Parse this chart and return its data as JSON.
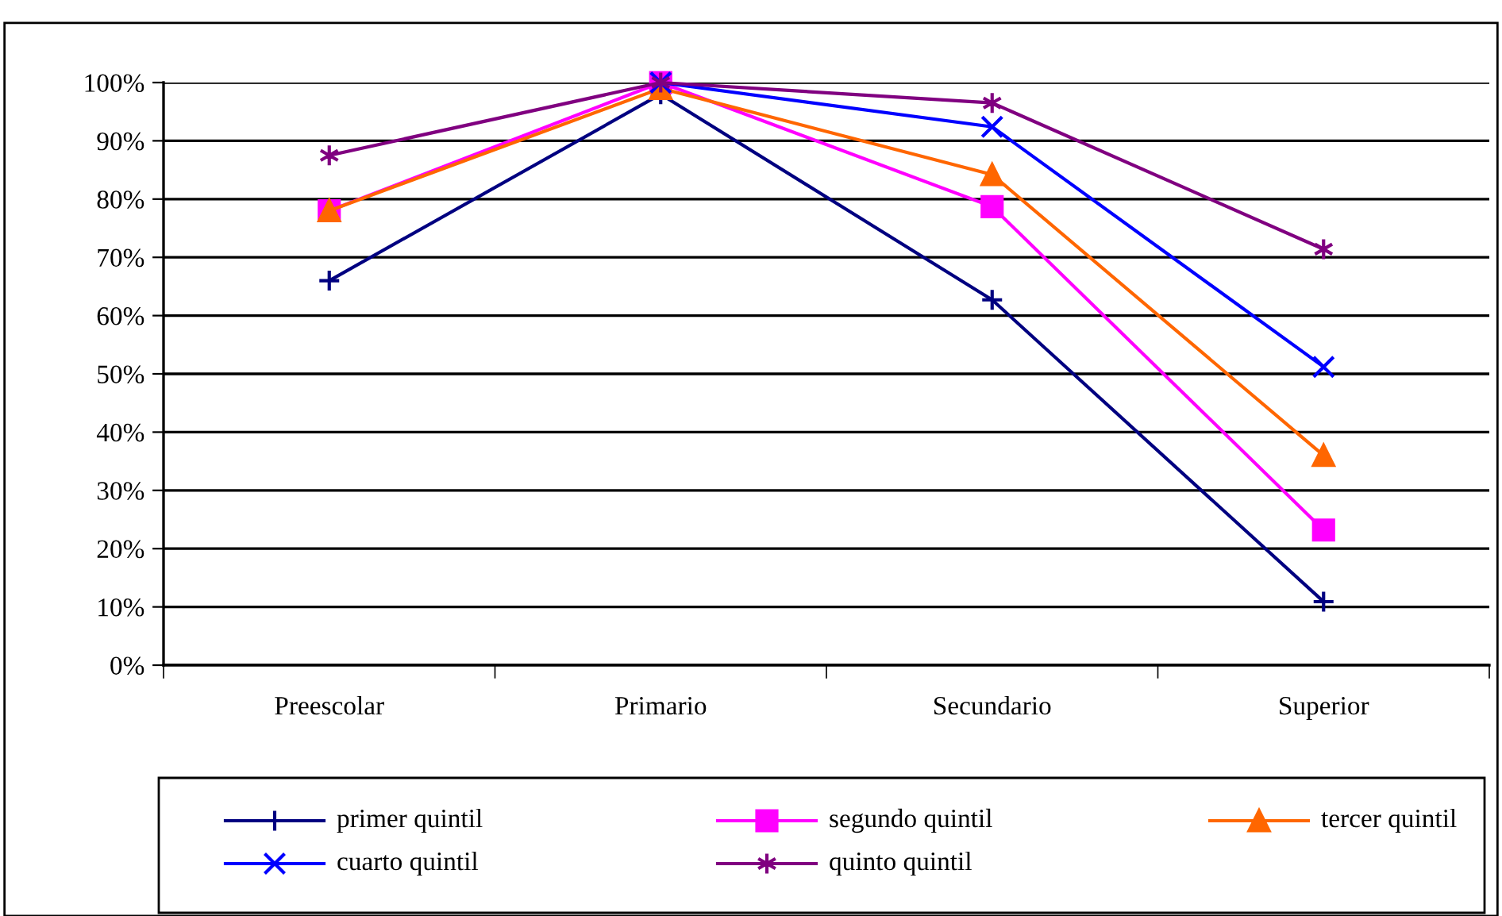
{
  "chart_data": {
    "type": "line",
    "categories": [
      "Preescolar",
      "Primario",
      "Secundario",
      "Superior"
    ],
    "series": [
      {
        "name": "primer quintil",
        "color": "#000080",
        "marker": "cross",
        "values": [
          66,
          98,
          62.7,
          10.9
        ]
      },
      {
        "name": "segundo quintil",
        "color": "#ff00ff",
        "marker": "square",
        "values": [
          78,
          100,
          78.7,
          23.2
        ]
      },
      {
        "name": "tercer quintil",
        "color": "#ff6600",
        "marker": "triangle",
        "values": [
          78,
          99,
          84.2,
          36
        ]
      },
      {
        "name": "cuarto quintil",
        "color": "#0000ff",
        "marker": "cross",
        "values": [
          null,
          100,
          92.4,
          51.2
        ]
      },
      {
        "name": "quinto quintil",
        "color": "#800080",
        "marker": "cross",
        "values": [
          87.5,
          100,
          96.5,
          71.4
        ]
      }
    ],
    "ylim": [
      0,
      100
    ],
    "yticks": [
      {
        "value": 0,
        "label": "0%"
      },
      {
        "value": 10,
        "label": "10%"
      },
      {
        "value": 20,
        "label": "20%"
      },
      {
        "value": 30,
        "label": "30%"
      },
      {
        "value": 40,
        "label": "40%"
      },
      {
        "value": 50,
        "label": "50%"
      },
      {
        "value": 60,
        "label": "60%"
      },
      {
        "value": 70,
        "label": "70%"
      },
      {
        "value": 80,
        "label": "80%"
      },
      {
        "value": 90,
        "label": "90%"
      },
      {
        "value": 100,
        "label": "100%"
      }
    ],
    "grid": "y",
    "legend": "bottom",
    "line_style": "solid"
  }
}
